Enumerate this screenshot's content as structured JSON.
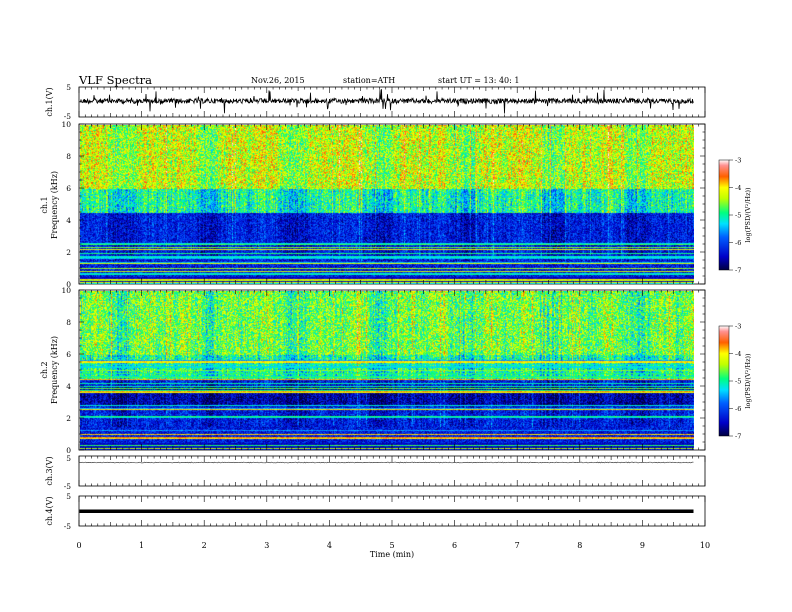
{
  "header": {
    "title": "VLF  Spectra",
    "date": "Nov.26, 2015",
    "station": "station=ATH",
    "start": "start  UT  =   13: 40: 1"
  },
  "chart_data": [
    {
      "type": "line",
      "name": "ch1-waveform",
      "ylabel": "ch.1(V)",
      "ylim": [
        -5,
        5
      ],
      "y_ticks": [
        "5",
        "-5"
      ],
      "xlim": [
        0,
        10
      ]
    },
    {
      "type": "heatmap",
      "name": "ch1-spectrogram",
      "ylabel_channel": "ch.1",
      "ylabel": "Frequency  (kHz)",
      "ylim": [
        0,
        10
      ],
      "y_ticks": [
        "0",
        "2",
        "4",
        "6",
        "8",
        "10"
      ],
      "colorbar": {
        "label": "log(PSD/(V²/Hz))",
        "range": [
          -7,
          -3
        ],
        "ticks": [
          "-3",
          "-4",
          "-5",
          "-6",
          "-7"
        ]
      }
    },
    {
      "type": "heatmap",
      "name": "ch2-spectrogram",
      "ylabel_channel": "ch.2",
      "ylabel": "Frequency  (kHz)",
      "ylim": [
        0,
        10
      ],
      "y_ticks": [
        "0",
        "2",
        "4",
        "6",
        "8",
        "10"
      ],
      "colorbar": {
        "label": "log(PSD/(V²/Hz))",
        "range": [
          -7,
          -3
        ],
        "ticks": [
          "-3",
          "-4",
          "-5",
          "-6",
          "-7"
        ]
      }
    },
    {
      "type": "line",
      "name": "ch3-waveform",
      "ylabel": "ch.3(V)",
      "ylim": [
        -5,
        5
      ],
      "y_ticks": [
        "5",
        "-5"
      ]
    },
    {
      "type": "line",
      "name": "ch4-waveform",
      "ylabel": "ch.4(V)",
      "ylim": [
        -5,
        5
      ],
      "y_ticks": [
        "5",
        "-5"
      ]
    }
  ],
  "xaxis": {
    "label": "Time  (min)",
    "ticks": [
      "0",
      "1",
      "2",
      "3",
      "4",
      "5",
      "6",
      "7",
      "8",
      "9",
      "10"
    ],
    "range": [
      0,
      10
    ],
    "data_end": 9.82
  },
  "colors": {
    "colormap": [
      "#000040",
      "#0000c0",
      "#0060ff",
      "#00d8ff",
      "#00e8a0",
      "#40ff40",
      "#c8ff00",
      "#ffff00",
      "#ff8000",
      "#ff2020",
      "#ffffff"
    ]
  }
}
